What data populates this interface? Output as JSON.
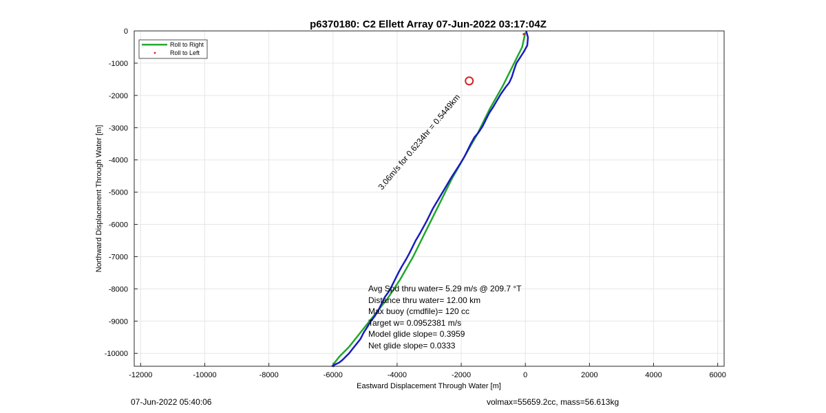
{
  "chart_data": {
    "type": "line",
    "title": "p6370180: C2 Ellett Array 07-Jun-2022 03:17:04Z",
    "xlabel": "Eastward Displacement Through Water [m]",
    "ylabel": "Northward Displacement Through Water [m]",
    "xlim": [
      -12200,
      6200
    ],
    "ylim": [
      -10400,
      0
    ],
    "xticks": [
      -12000,
      -10000,
      -8000,
      -6000,
      -4000,
      -2000,
      0,
      2000,
      4000,
      6000
    ],
    "yticks": [
      0,
      -1000,
      -2000,
      -3000,
      -4000,
      -5000,
      -6000,
      -7000,
      -8000,
      -9000,
      -10000
    ],
    "grid": true,
    "legend_position": "top-left",
    "series": [
      {
        "name": "Roll to Right",
        "color": "#1fa82a",
        "x": [
          0,
          -100,
          -350,
          -700,
          -1100,
          -1500,
          -1900,
          -2300,
          -2700,
          -3100,
          -3500,
          -3900,
          -4300,
          -4700,
          -5100,
          -5500,
          -5800,
          -6000
        ],
        "y": [
          -50,
          -500,
          -1000,
          -1700,
          -2400,
          -3200,
          -3900,
          -4600,
          -5400,
          -6200,
          -7000,
          -7700,
          -8300,
          -8800,
          -9300,
          -9800,
          -10100,
          -10350
        ]
      },
      {
        "name": "Roll to Left",
        "color": "#e02020",
        "x": [
          -50
        ],
        "y": [
          -100
        ]
      },
      {
        "name": "",
        "color": "#1b1bbf",
        "x": [
          30,
          80,
          60,
          -50,
          -180,
          -280,
          -350,
          -420,
          -500,
          -620,
          -760,
          -880,
          -1000,
          -1130,
          -1230,
          -1330,
          -1460,
          -1590,
          -1700,
          -1800,
          -1900,
          -2020,
          -2150,
          -2280,
          -2400,
          -2520,
          -2640,
          -2760,
          -2880,
          -2980,
          -3080,
          -3190,
          -3300,
          -3420,
          -3520,
          -3620,
          -3730,
          -3850,
          -3960,
          -4060,
          -4160,
          -4270,
          -4380,
          -4480,
          -4580,
          -4700,
          -4820,
          -4940,
          -5040,
          -5140,
          -5260,
          -5380,
          -5500,
          -5600,
          -5700,
          -5800,
          -5900,
          -5990,
          -6020,
          -5980
        ],
        "y": [
          -20,
          -200,
          -450,
          -650,
          -850,
          -1000,
          -1200,
          -1420,
          -1600,
          -1750,
          -1950,
          -2150,
          -2350,
          -2550,
          -2750,
          -2950,
          -3150,
          -3300,
          -3500,
          -3700,
          -3900,
          -4100,
          -4300,
          -4500,
          -4700,
          -4900,
          -5100,
          -5300,
          -5500,
          -5700,
          -5900,
          -6100,
          -6300,
          -6500,
          -6700,
          -6900,
          -7100,
          -7300,
          -7500,
          -7700,
          -7900,
          -8100,
          -8250,
          -8450,
          -8650,
          -8850,
          -9000,
          -9200,
          -9350,
          -9550,
          -9700,
          -9850,
          -10000,
          -10100,
          -10200,
          -10280,
          -10330,
          -10370,
          -10390,
          -10400
        ]
      }
    ],
    "annotations": [
      {
        "text": "3.06m/s for 0.6234hr = 0.5449km",
        "x": -3250,
        "y": -3500,
        "rotation_deg": -50
      }
    ],
    "marker": {
      "name": "current-position-circle",
      "x": -1750,
      "y": -1550,
      "color": "#d42020"
    },
    "stats": [
      "Avg Spd thru water=  5.29 m/s @ 209.7 °T",
      "Distance thru water= 12.00 km",
      "Max buoy (cmdfile)= 120 cc",
      "Target w= 0.0952381 m/s",
      "Model glide slope= 0.3959",
      "Net glide slope= 0.0333"
    ]
  },
  "footer": {
    "left": "07-Jun-2022 05:40:06",
    "right": "volmax=55659.2cc, mass=56.613kg"
  }
}
